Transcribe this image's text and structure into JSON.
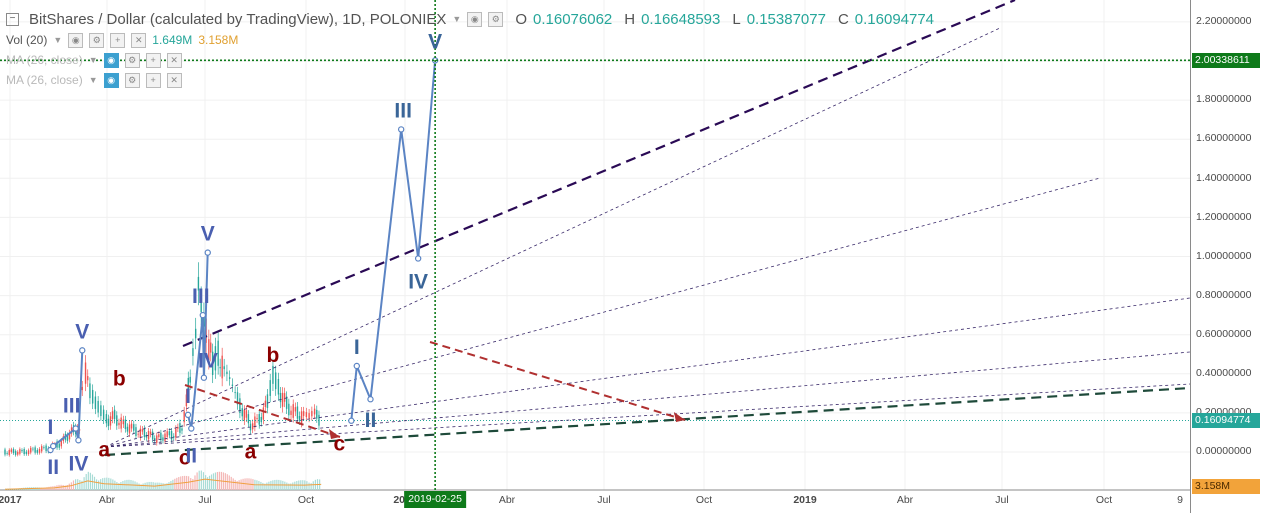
{
  "legend": {
    "title": "BitShares / Dollar (calculated by TradingView), 1D, POLONIEX",
    "o_label": "O",
    "o_value": "0.16076062",
    "h_label": "H",
    "h_value": "0.16648593",
    "l_label": "L",
    "l_value": "0.15387077",
    "c_label": "C",
    "c_value": "0.16094774",
    "vol_label": "Vol (20)",
    "vol_value_1": "1.649M",
    "vol_value_2": "3.158M",
    "ma1_label": "MA (26, close)",
    "ma2_label": "MA (26, close)"
  },
  "price_axis": {
    "ticks": [
      "2.20000000",
      "2.00000000",
      "1.80000000",
      "1.60000000",
      "1.40000000",
      "1.20000000",
      "1.00000000",
      "0.80000000",
      "0.60000000",
      "0.40000000",
      "0.20000000",
      "0.00000000"
    ],
    "crosshair_price": "2.00338611",
    "current_price": "0.16094774",
    "volume_tag": "3.158M"
  },
  "time_axis": {
    "ticks": [
      "2017",
      "Abr",
      "Jul",
      "Oct",
      "2018",
      "Abr",
      "Jul",
      "Oct",
      "2019",
      "Abr",
      "Jul",
      "Oct",
      "9"
    ],
    "crosshair_date": "2019-02-25"
  },
  "colors": {
    "wave_impulse": "#5b84c4",
    "wave_label_blue": "#4a5fb0",
    "wave_label_steel": "#3a6598",
    "corrective_label": "#8b0000",
    "corrective_line": "#b03030",
    "outer_channel": "#2a0a55",
    "support_line": "#1e4a3a",
    "crosshair": "#0e7a1a",
    "price_up": "#26a69a",
    "price_down": "#ef5350"
  },
  "chart_data": {
    "type": "line",
    "title": "BitShares / Dollar (calculated by TradingView), 1D, POLONIEX",
    "ylim": [
      -0.16,
      2.24
    ],
    "ohlc": {
      "open": 0.16076062,
      "high": 0.16648593,
      "low": 0.15387077,
      "close": 0.16094774
    },
    "series": [
      {
        "name": "Price",
        "x": [
          "2017-01-01",
          "2017-02-01",
          "2017-03-01",
          "2017-03-25",
          "2017-04-10",
          "2017-04-25",
          "2017-05-10",
          "2017-05-17",
          "2017-05-22",
          "2017-05-28",
          "2017-06-05",
          "2017-06-15",
          "2017-06-25",
          "2017-07-05",
          "2017-07-20",
          "2017-08-05",
          "2017-08-20",
          "2017-09-05",
          "2017-09-20",
          "2017-10-05",
          "2017-10-20",
          "2017-11-05",
          "2017-11-20",
          "2017-11-28",
          "2017-12-05",
          "2017-12-10",
          "2017-12-15",
          "2017-12-20",
          "2017-12-25",
          "2017-12-30",
          "2018-01-03",
          "2018-01-08",
          "2018-01-15",
          "2018-01-25",
          "2018-02-05",
          "2018-02-15",
          "2018-02-25",
          "2018-03-10",
          "2018-03-25",
          "2018-04-10",
          "2018-04-25",
          "2018-05-05",
          "2018-05-15",
          "2018-05-30",
          "2018-06-15",
          "2018-06-30",
          "2018-07-10",
          "2018-07-20",
          "2018-08-01"
        ],
        "y": [
          0.0,
          0.0,
          0.01,
          0.02,
          0.04,
          0.08,
          0.12,
          0.1,
          0.3,
          0.4,
          0.3,
          0.24,
          0.2,
          0.16,
          0.18,
          0.14,
          0.12,
          0.1,
          0.09,
          0.07,
          0.08,
          0.09,
          0.13,
          0.25,
          0.4,
          0.55,
          0.65,
          0.92,
          0.8,
          0.72,
          0.65,
          0.55,
          0.45,
          0.5,
          0.4,
          0.35,
          0.28,
          0.22,
          0.14,
          0.16,
          0.25,
          0.38,
          0.32,
          0.24,
          0.2,
          0.18,
          0.17,
          0.19,
          0.16
        ]
      },
      {
        "name": "Volume",
        "x": [
          "2017-01-01",
          "2017-04-01",
          "2017-05-01",
          "2017-06-01",
          "2017-07-01",
          "2017-10-01",
          "2017-12-01",
          "2018-01-01",
          "2018-04-01",
          "2018-07-01",
          "2018-08-01"
        ],
        "y": [
          0.2,
          0.6,
          1.2,
          2.6,
          1.8,
          1.1,
          2.2,
          3.1,
          1.5,
          1.4,
          1.6
        ]
      }
    ],
    "wave_projection": [
      {
        "label": "I",
        "x": "2017-03-25",
        "y": 0.01
      },
      {
        "label": "II",
        "x": "2017-03-30",
        "y": 0.03
      },
      {
        "label": "III",
        "x": "2017-05-10",
        "y": 0.12
      },
      {
        "label": "IV",
        "x": "2017-05-15",
        "y": 0.06
      },
      {
        "label": "V",
        "x": "2017-05-22",
        "y": 0.52
      },
      {
        "label": "a",
        "x": "2017-07-01",
        "y": 0.12
      },
      {
        "label": "b",
        "x": "2017-07-25",
        "y": 0.28
      },
      {
        "label": "c",
        "x": "2017-11-25",
        "y": 0.09
      },
      {
        "label": "I",
        "x": "2017-12-01",
        "y": 0.19
      },
      {
        "label": "II",
        "x": "2017-12-07",
        "y": 0.12
      },
      {
        "label": "III",
        "x": "2017-12-28",
        "y": 0.7
      },
      {
        "label": "IV",
        "x": "2017-12-30",
        "y": 0.38
      },
      {
        "label": "V",
        "x": "2018-01-06",
        "y": 1.02
      },
      {
        "label": "a",
        "x": "2018-03-25",
        "y": 0.12
      },
      {
        "label": "b",
        "x": "2018-05-05",
        "y": 0.4
      },
      {
        "label": "c",
        "x": "2018-09-25",
        "y": 0.16
      },
      {
        "label": "I",
        "x": "2018-10-05",
        "y": 0.44
      },
      {
        "label": "II",
        "x": "2018-10-30",
        "y": 0.27
      },
      {
        "label": "III",
        "x": "2018-12-25",
        "y": 1.65
      },
      {
        "label": "IV",
        "x": "2019-01-25",
        "y": 0.99
      },
      {
        "label": "V",
        "x": "2019-02-25",
        "y": 2.00338611
      }
    ]
  }
}
